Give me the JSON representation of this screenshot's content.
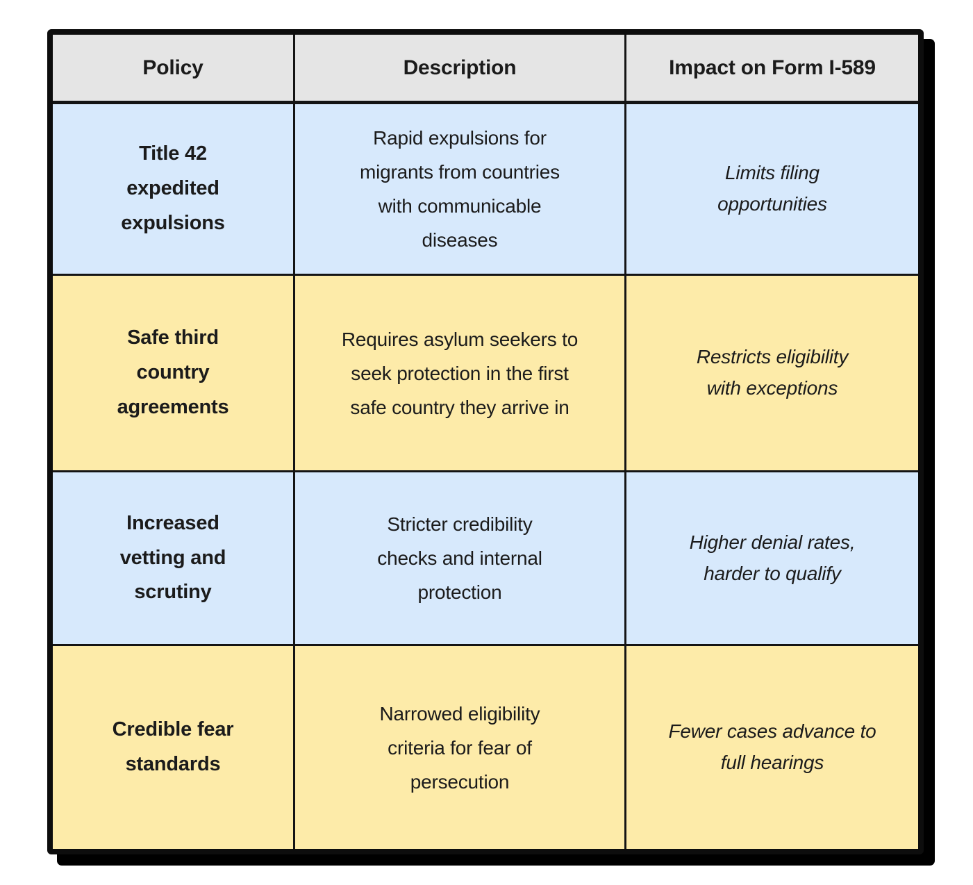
{
  "table": {
    "headers": [
      {
        "label": "Policy"
      },
      {
        "label": "Description"
      },
      {
        "label": "Impact on Form I-589"
      }
    ],
    "rows": [
      {
        "policy": "Title 42\nexpedited\nexpulsions",
        "description": "Rapid expulsions for\nmigrants from countries\nwith communicable\ndiseases",
        "impact": "Limits filing\nopportunities"
      },
      {
        "policy": "Safe third\ncountry\nagreements",
        "description": "Requires asylum seekers to\nseek protection in the first\nsafe country they arrive in",
        "impact": "Restricts eligibility\nwith exceptions"
      },
      {
        "policy": "Increased\nvetting and\nscrutiny",
        "description": "Stricter credibility\nchecks and internal\nprotection",
        "impact": "Higher denial rates,\nharder to qualify"
      },
      {
        "policy": "Credible fear\nstandards",
        "description": "Narrowed eligibility\ncriteria for fear of\npersecution",
        "impact": "Fewer cases advance to\nfull hearings"
      }
    ],
    "colors": {
      "header_bg": "#e5e5e5",
      "row_blue": "#d7e9fc",
      "row_yellow": "#fdeba9",
      "border": "#141414",
      "text": "#1b1b1b"
    }
  },
  "chart_data": {
    "type": "table",
    "title": "",
    "columns": [
      "Policy",
      "Description",
      "Impact on Form I-589"
    ],
    "rows": [
      [
        "Title 42 expedited expulsions",
        "Rapid expulsions for migrants from countries with communicable diseases",
        "Limits filing opportunities"
      ],
      [
        "Safe third country agreements",
        "Requires asylum seekers to seek protection in the first safe country they arrive in",
        "Restricts eligibility with exceptions"
      ],
      [
        "Increased vetting and scrutiny",
        "Stricter credibility checks and internal protection",
        "Higher denial rates, harder to qualify"
      ],
      [
        "Credible fear standards",
        "Narrowed eligibility criteria for fear of persecution",
        "Fewer cases advance to full hearings"
      ]
    ],
    "layout_hints": {
      "row_stripe_colors": [
        "#d7e9fc",
        "#fdeba9"
      ],
      "header_background": "#e5e5e5",
      "policy_column_style": "bold",
      "impact_column_style": "italic",
      "grid": "on"
    }
  }
}
